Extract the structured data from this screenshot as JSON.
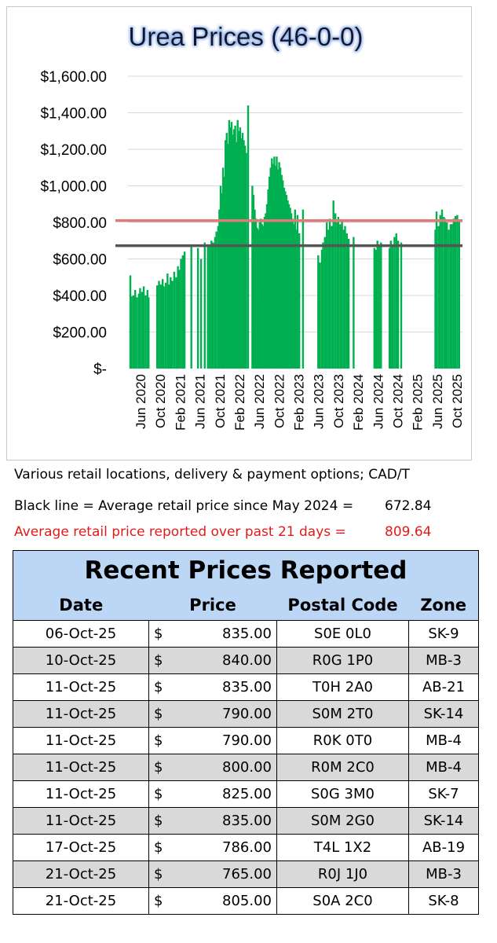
{
  "chart_data": {
    "type": "bar",
    "title": "Urea Prices (46-0-0)",
    "ylim": [
      0,
      1600
    ],
    "y_ticks": [
      "$-",
      "$200.00",
      "$400.00",
      "$600.00",
      "$800.00",
      "$1,000.00",
      "$1,200.00",
      "$1,400.00",
      "$1,600.00"
    ],
    "x_ticks": [
      "Jun 2020",
      "Oct 2020",
      "Feb 2021",
      "Jun 2021",
      "Oct 2021",
      "Feb 2022",
      "Jun 2022",
      "Oct 2022",
      "Feb 2023",
      "Jun 2023",
      "Oct 2023",
      "Feb 2024",
      "Jun 2024",
      "Oct 2024",
      "Feb 2025",
      "Jun 2025",
      "Oct 2025"
    ],
    "series": [
      {
        "values": [
          [
            2020.42,
            510
          ],
          [
            2020.44,
            395
          ],
          [
            2020.47,
            400
          ],
          [
            2020.5,
            430
          ],
          [
            2020.53,
            390
          ],
          [
            2020.56,
            410
          ],
          [
            2020.58,
            440
          ],
          [
            2020.61,
            420
          ],
          [
            2020.64,
            450
          ],
          [
            2020.67,
            400
          ],
          [
            2020.7,
            430
          ],
          [
            2020.72,
            390
          ],
          [
            2020.86,
            455
          ],
          [
            2020.89,
            480
          ],
          [
            2020.92,
            460
          ],
          [
            2020.95,
            490
          ],
          [
            2020.97,
            450
          ],
          [
            2021.0,
            470
          ],
          [
            2021.03,
            520
          ],
          [
            2021.06,
            460
          ],
          [
            2021.08,
            500
          ],
          [
            2021.11,
            480
          ],
          [
            2021.14,
            530
          ],
          [
            2021.17,
            500
          ],
          [
            2021.2,
            560
          ],
          [
            2021.22,
            540
          ],
          [
            2021.25,
            600
          ],
          [
            2021.28,
            620
          ],
          [
            2021.31,
            640
          ],
          [
            2021.42,
            680
          ],
          [
            2021.53,
            660
          ],
          [
            2021.58,
            600
          ],
          [
            2021.64,
            690
          ],
          [
            2021.69,
            670
          ],
          [
            2021.72,
            680
          ],
          [
            2021.75,
            700
          ],
          [
            2021.78,
            690
          ],
          [
            2021.81,
            720
          ],
          [
            2021.83,
            750
          ],
          [
            2021.86,
            780
          ],
          [
            2021.88,
            870
          ],
          [
            2021.9,
            1000
          ],
          [
            2021.92,
            960
          ],
          [
            2021.94,
            1100
          ],
          [
            2021.96,
            1050
          ],
          [
            2021.98,
            1250
          ],
          [
            2022.0,
            1290
          ],
          [
            2022.02,
            1230
          ],
          [
            2022.04,
            1360
          ],
          [
            2022.06,
            1320
          ],
          [
            2022.08,
            1350
          ],
          [
            2022.1,
            1280
          ],
          [
            2022.12,
            1310
          ],
          [
            2022.14,
            1330
          ],
          [
            2022.16,
            1240
          ],
          [
            2022.18,
            1360
          ],
          [
            2022.2,
            1300
          ],
          [
            2022.22,
            1320
          ],
          [
            2022.24,
            1260
          ],
          [
            2022.26,
            1290
          ],
          [
            2022.28,
            1250
          ],
          [
            2022.3,
            1220
          ],
          [
            2022.32,
            1180
          ],
          [
            2022.35,
            1440
          ],
          [
            2022.42,
            1000
          ],
          [
            2022.44,
            950
          ],
          [
            2022.46,
            870
          ],
          [
            2022.48,
            820
          ],
          [
            2022.5,
            770
          ],
          [
            2022.52,
            760
          ],
          [
            2022.54,
            800
          ],
          [
            2022.56,
            820
          ],
          [
            2022.58,
            790
          ],
          [
            2022.6,
            780
          ],
          [
            2022.62,
            830
          ],
          [
            2022.64,
            850
          ],
          [
            2022.66,
            900
          ],
          [
            2022.68,
            980
          ],
          [
            2022.7,
            1050
          ],
          [
            2022.72,
            1100
          ],
          [
            2022.74,
            1150
          ],
          [
            2022.76,
            1120
          ],
          [
            2022.78,
            1160
          ],
          [
            2022.8,
            1110
          ],
          [
            2022.82,
            1160
          ],
          [
            2022.84,
            1090
          ],
          [
            2022.86,
            1130
          ],
          [
            2022.88,
            1100
          ],
          [
            2022.9,
            1060
          ],
          [
            2022.92,
            1030
          ],
          [
            2022.94,
            990
          ],
          [
            2022.96,
            970
          ],
          [
            2022.98,
            950
          ],
          [
            2023.0,
            920
          ],
          [
            2023.02,
            900
          ],
          [
            2023.04,
            880
          ],
          [
            2023.06,
            850
          ],
          [
            2023.08,
            820
          ],
          [
            2023.1,
            790
          ],
          [
            2023.12,
            870
          ],
          [
            2023.14,
            760
          ],
          [
            2023.16,
            840
          ],
          [
            2023.19,
            740
          ],
          [
            2023.25,
            870
          ],
          [
            2023.5,
            620
          ],
          [
            2023.53,
            580
          ],
          [
            2023.56,
            650
          ],
          [
            2023.58,
            690
          ],
          [
            2023.61,
            720
          ],
          [
            2023.64,
            800
          ],
          [
            2023.67,
            760
          ],
          [
            2023.69,
            820
          ],
          [
            2023.72,
            780
          ],
          [
            2023.75,
            920
          ],
          [
            2023.78,
            850
          ],
          [
            2023.81,
            800
          ],
          [
            2023.83,
            830
          ],
          [
            2023.86,
            790
          ],
          [
            2023.89,
            810
          ],
          [
            2023.92,
            760
          ],
          [
            2023.94,
            780
          ],
          [
            2023.97,
            740
          ],
          [
            2024.0,
            710
          ],
          [
            2024.08,
            720
          ],
          [
            2024.42,
            660
          ],
          [
            2024.45,
            650
          ],
          [
            2024.47,
            700
          ],
          [
            2024.5,
            680
          ],
          [
            2024.53,
            690
          ],
          [
            2024.67,
            660
          ],
          [
            2024.69,
            700
          ],
          [
            2024.72,
            680
          ],
          [
            2024.75,
            720
          ],
          [
            2024.78,
            740
          ],
          [
            2024.81,
            700
          ],
          [
            2024.86,
            690
          ],
          [
            2025.42,
            760
          ],
          [
            2025.44,
            860
          ],
          [
            2025.47,
            780
          ],
          [
            2025.5,
            840
          ],
          [
            2025.53,
            870
          ],
          [
            2025.56,
            830
          ],
          [
            2025.58,
            820
          ],
          [
            2025.61,
            800
          ],
          [
            2025.64,
            760
          ],
          [
            2025.67,
            790
          ],
          [
            2025.69,
            790
          ],
          [
            2025.72,
            820
          ],
          [
            2025.75,
            835
          ],
          [
            2025.78,
            840
          ],
          [
            2025.81,
            805
          ]
        ]
      }
    ],
    "reference_lines": [
      {
        "value": 809.64,
        "color": "#e07a7a"
      },
      {
        "value": 672.84,
        "color": "#555555"
      }
    ],
    "bar_color": "#00b050"
  },
  "notes": {
    "line1": "Various retail locations, delivery & payment options; CAD/T",
    "line2": "Black line = Average retail price since May 2024 =",
    "line2_value": "672.84",
    "line3": "Average retail price reported over past 21 days  =",
    "line3_value": "809.64"
  },
  "table": {
    "title": "Recent Prices Reported",
    "headers": [
      "Date",
      "Price",
      "Postal Code",
      "Zone"
    ],
    "currency_symbol": "$",
    "rows": [
      [
        "06-Oct-25",
        "835.00",
        "S0E 0L0",
        "SK-9"
      ],
      [
        "10-Oct-25",
        "840.00",
        "R0G 1P0",
        "MB-3"
      ],
      [
        "11-Oct-25",
        "835.00",
        "T0H 2A0",
        "AB-21"
      ],
      [
        "11-Oct-25",
        "790.00",
        "S0M 2T0",
        "SK-14"
      ],
      [
        "11-Oct-25",
        "790.00",
        "R0K 0T0",
        "MB-4"
      ],
      [
        "11-Oct-25",
        "800.00",
        "R0M 2C0",
        "MB-4"
      ],
      [
        "11-Oct-25",
        "825.00",
        "S0G 3M0",
        "SK-7"
      ],
      [
        "11-Oct-25",
        "835.00",
        "S0M 2G0",
        "SK-14"
      ],
      [
        "17-Oct-25",
        "786.00",
        "T4L 1X2",
        "AB-19"
      ],
      [
        "21-Oct-25",
        "765.00",
        "R0J 1J0",
        "MB-3"
      ],
      [
        "21-Oct-25",
        "805.00",
        "S0A 2C0",
        "SK-8"
      ]
    ]
  }
}
